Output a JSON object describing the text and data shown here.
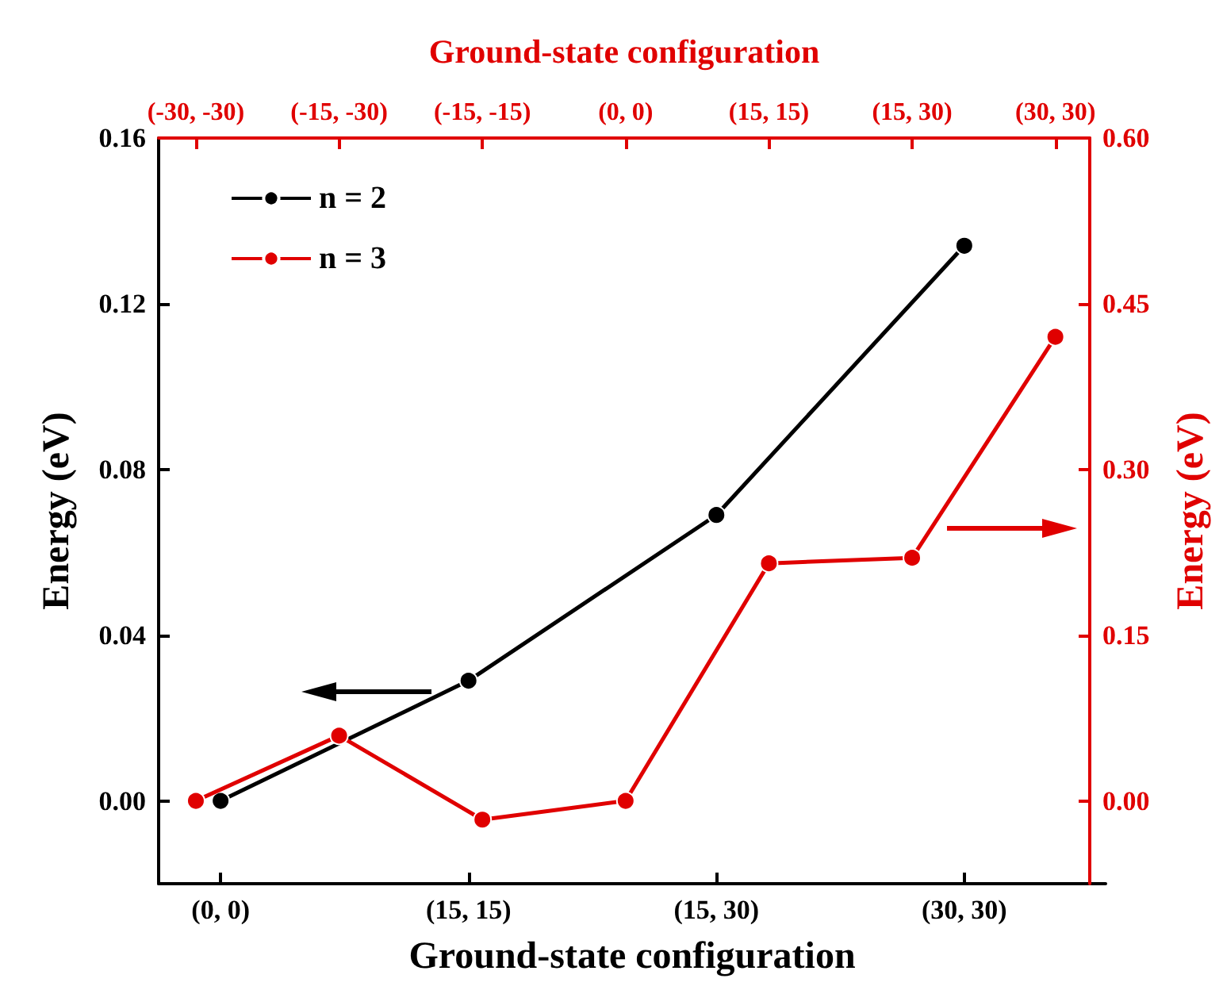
{
  "chart_data": [
    {
      "type": "line",
      "xlabel": "Ground-state configuration",
      "ylabel": "Energy (eV)",
      "categories": [
        "(0, 0)",
        "(15, 15)",
        "(15, 30)",
        "(30, 30)"
      ],
      "series": [
        {
          "name": "n = 2",
          "color": "#000000",
          "values": [
            0,
            0.029,
            0.069,
            0.134
          ]
        }
      ],
      "ylim": [
        -0.02,
        0.16
      ],
      "yticks": [
        {
          "value": 0,
          "label": "0.00"
        },
        {
          "value": 0.04,
          "label": "0.04"
        },
        {
          "value": 0.08,
          "label": "0.08"
        },
        {
          "value": 0.12,
          "label": "0.12"
        },
        {
          "value": 0.16,
          "label": "0.16"
        }
      ],
      "marker": "circle",
      "line_style": "solid",
      "legend": "top left",
      "grid": false
    },
    {
      "type": "line",
      "x2label": "Ground-state configuration",
      "y2label": "Energy (eV)",
      "categories": [
        "(-30, -30)",
        "(-15, -30)",
        "(-15, -15)",
        "(0, 0)",
        "(15, 15)",
        "(15, 30)",
        "(30, 30)"
      ],
      "series": [
        {
          "name": "n = 3",
          "color": "#e00000",
          "axis": "y2",
          "values": [
            0,
            0.059,
            -0.017,
            0,
            0.215,
            0.22,
            0.42
          ]
        }
      ],
      "y2lim": [
        -0.075,
        0.6
      ],
      "y2ticks": [
        {
          "value": 0,
          "label": "0.00"
        },
        {
          "value": 0.15,
          "label": "0.15"
        },
        {
          "value": 0.3,
          "label": "0.30"
        },
        {
          "value": 0.45,
          "label": "0.45"
        },
        {
          "value": 0.6,
          "label": "0.60"
        }
      ],
      "marker": "circle",
      "line_style": "solid",
      "legend": "top left",
      "grid": false
    }
  ]
}
